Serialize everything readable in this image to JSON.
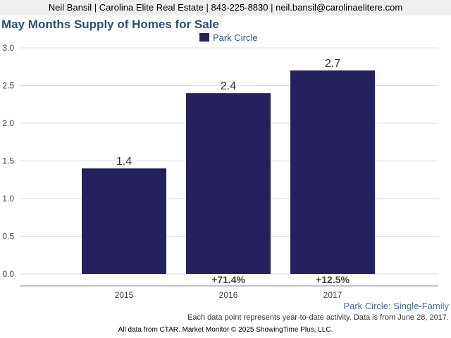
{
  "header": {
    "contact": "Neil Bansil | Carolina Elite Real Estate | 843-225-8830 | neil.bansil@carolinaelitere.com"
  },
  "chart_data": {
    "type": "bar",
    "title": "May Months Supply of Homes for Sale",
    "categories": [
      "2015",
      "2016",
      "2017"
    ],
    "series": [
      {
        "name": "Park Circle",
        "values": [
          1.4,
          2.4,
          2.7
        ]
      }
    ],
    "value_labels": [
      "1.4",
      "2.4",
      "2.7"
    ],
    "change_labels": [
      "",
      "+71.4%",
      "+12.5%"
    ],
    "yticks": [
      "0.0",
      "0.5",
      "1.0",
      "1.5",
      "2.0",
      "2.5",
      "3.0"
    ],
    "ylim": [
      0,
      3
    ],
    "grid": true,
    "legend_position": "top-center",
    "bar_color": "#24215e"
  },
  "notes": {
    "series_label": "Park Circle: Single-Family",
    "data_note": "Each data point represents year-to-date activity. Data is from June 28, 2017.",
    "credit": "All data from CTAR. Market Monitor © 2025 ShowingTime Plus, LLC."
  }
}
